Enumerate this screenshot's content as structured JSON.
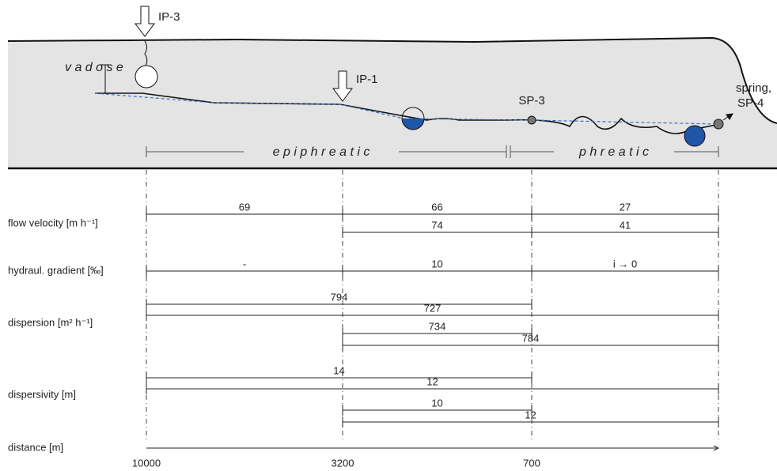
{
  "section": {
    "ip3": "IP-3",
    "vadose": "v a d o s e",
    "ip1": "IP-1",
    "sp3": "SP-3",
    "spring": "spring,",
    "sp4": "SP-4",
    "epiphreatic": "e p i p h r e a t i c",
    "phreatic": "p h r e a t i c"
  },
  "rows": [
    {
      "label": "flow velocity [m h⁻¹]",
      "values": [
        "69",
        "66",
        "27",
        "74",
        "41"
      ]
    },
    {
      "label": "hydraul. gradient [‰]",
      "values": [
        "-",
        "10",
        "i → 0"
      ]
    },
    {
      "label": "dispersion [m² h⁻¹]",
      "values": [
        "794",
        "727",
        "734",
        "784"
      ]
    },
    {
      "label": "dispersivity [m]",
      "values": [
        "14",
        "12",
        "10",
        "12"
      ]
    }
  ],
  "distance": {
    "label": "distance [m]",
    "ticks": [
      "10000",
      "3200",
      "700"
    ]
  }
}
